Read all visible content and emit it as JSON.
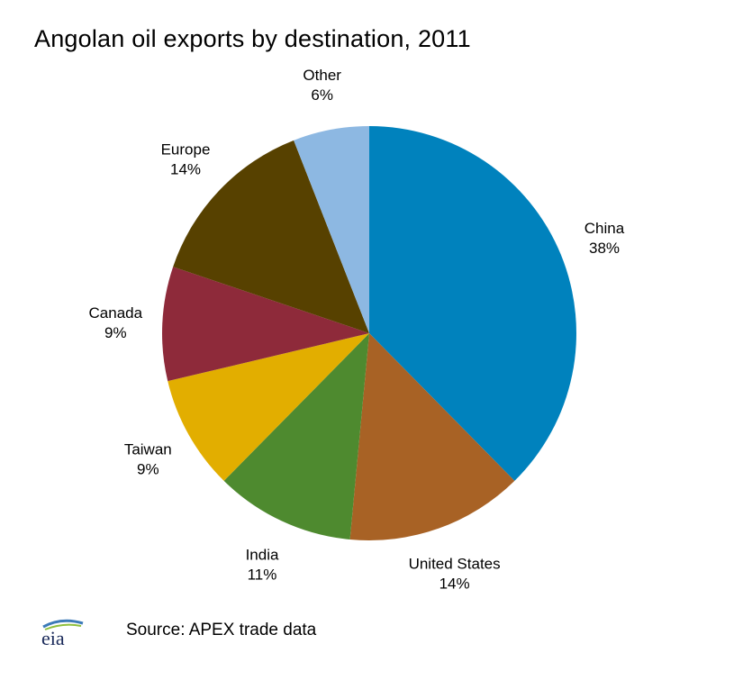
{
  "header": {
    "title": "Angolan oil exports by destination, 2011"
  },
  "chart_data": {
    "type": "pie",
    "title": "Angolan oil exports by destination, 2011",
    "unit": "%",
    "slices": [
      {
        "name": "China",
        "value": 38,
        "label": "38%",
        "color": "#0082bd"
      },
      {
        "name": "United States",
        "value": 14,
        "label": "14%",
        "color": "#a86225"
      },
      {
        "name": "India",
        "value": 11,
        "label": "11%",
        "color": "#4e8a2f"
      },
      {
        "name": "Taiwan",
        "value": 9,
        "label": "9%",
        "color": "#e2ae00"
      },
      {
        "name": "Canada",
        "value": 9,
        "label": "9%",
        "color": "#8e2a3a"
      },
      {
        "name": "Europe",
        "value": 14,
        "label": "14%",
        "color": "#574100"
      },
      {
        "name": "Other",
        "value": 6,
        "label": "6%",
        "color": "#8db8e2"
      }
    ],
    "start_angle": "12 o'clock",
    "direction": "clockwise",
    "legend": "none (labels outside slices)"
  },
  "footer": {
    "logo_text": "eia",
    "logo_icon": "eia-logo-icon",
    "source": "Source:  APEX trade data"
  }
}
